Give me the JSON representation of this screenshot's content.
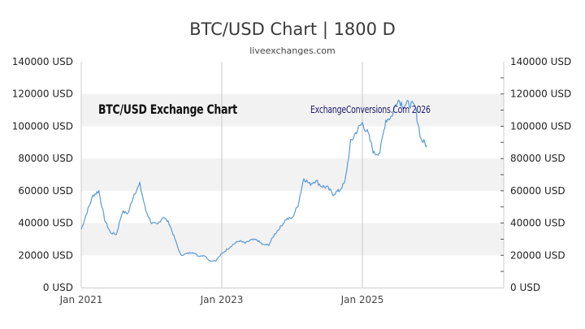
{
  "header": {
    "title": "BTC/USD Chart | 1800 D",
    "subtitle": "liveexchanges.com"
  },
  "watermarks": {
    "left": "BTC/USD Exchange Chart",
    "right": "ExchangeConversions.Com 2026"
  },
  "colors": {
    "line": "#5b9bd5",
    "band": "#f2f2f2",
    "axis": "#cccccc",
    "watermark_right": "#1a1a6e"
  },
  "chart_data": {
    "type": "line",
    "title": "BTC/USD Chart | 1800 D",
    "subtitle": "liveexchanges.com",
    "xlabel": "",
    "ylabel": "USD",
    "ylim": [
      0,
      140000
    ],
    "y_ticks": [
      "0 USD",
      "20000 USD",
      "40000 USD",
      "60000 USD",
      "80000 USD",
      "100000 USD",
      "120000 USD",
      "140000 USD"
    ],
    "x_ticks": [
      "Jan 2021",
      "Jan 2023",
      "Jan 2025"
    ],
    "grid": "alternating horizontal bands every 20000; vertical lines at Jan 2023 and Jan 2025",
    "legend": "none",
    "series": [
      {
        "name": "BTC/USD",
        "x": [
          "2021-01",
          "2021-02",
          "2021-03",
          "2021-04",
          "2021-05",
          "2021-06",
          "2021-07",
          "2021-08",
          "2021-09",
          "2021-10",
          "2021-11",
          "2021-12",
          "2022-01",
          "2022-02",
          "2022-03",
          "2022-04",
          "2022-05",
          "2022-06",
          "2022-07",
          "2022-08",
          "2022-09",
          "2022-10",
          "2022-11",
          "2022-12",
          "2023-01",
          "2023-02",
          "2023-03",
          "2023-04",
          "2023-05",
          "2023-06",
          "2023-07",
          "2023-08",
          "2023-09",
          "2023-10",
          "2023-11",
          "2023-12",
          "2024-01",
          "2024-02",
          "2024-03",
          "2024-04",
          "2024-05",
          "2024-06",
          "2024-07",
          "2024-08",
          "2024-09",
          "2024-10",
          "2024-11",
          "2024-12",
          "2025-01",
          "2025-02",
          "2025-03",
          "2025-04",
          "2025-05",
          "2025-06",
          "2025-07",
          "2025-08",
          "2025-09",
          "2025-10",
          "2025-11",
          "2025-12"
        ],
        "values": [
          36000,
          47000,
          57000,
          60000,
          42000,
          34000,
          33000,
          47000,
          46000,
          58000,
          64000,
          48000,
          40000,
          39000,
          44000,
          40000,
          30000,
          20000,
          21000,
          22000,
          19500,
          20000,
          16500,
          16800,
          21000,
          24000,
          27000,
          29000,
          27500,
          29500,
          29500,
          26500,
          26500,
          33000,
          37500,
          42500,
          43000,
          51000,
          68000,
          64000,
          66500,
          63000,
          62000,
          58000,
          60000,
          65000,
          90000,
          97000,
          102000,
          95000,
          83000,
          84000,
          104000,
          106000,
          117000,
          113000,
          114000,
          112000,
          92000,
          88000
        ]
      }
    ]
  }
}
